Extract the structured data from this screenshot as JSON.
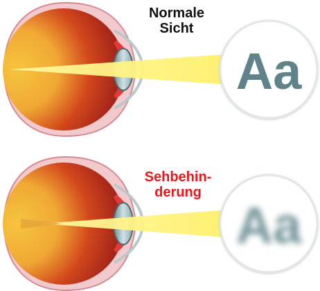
{
  "labels": {
    "normal": [
      "Normale",
      "Sicht"
    ],
    "impaired": [
      "Sehbehin-",
      "derung"
    ]
  },
  "chart_text": {
    "letters": "Aa"
  },
  "colors": {
    "eye_outer": "#8f1e16",
    "eye_mid": "#d2481c",
    "eye_inner": "#f6c43e",
    "sclera_rim": "#e8a2a8",
    "light_beam": "#fff27a",
    "letters": "#5f8389",
    "circle_border": "#e2e6e6",
    "impaired_label": "#e8191e",
    "normal_label": "#111111"
  },
  "icons": {
    "eye": "eye-cross-section-icon",
    "chart": "reading-chart-icon"
  }
}
